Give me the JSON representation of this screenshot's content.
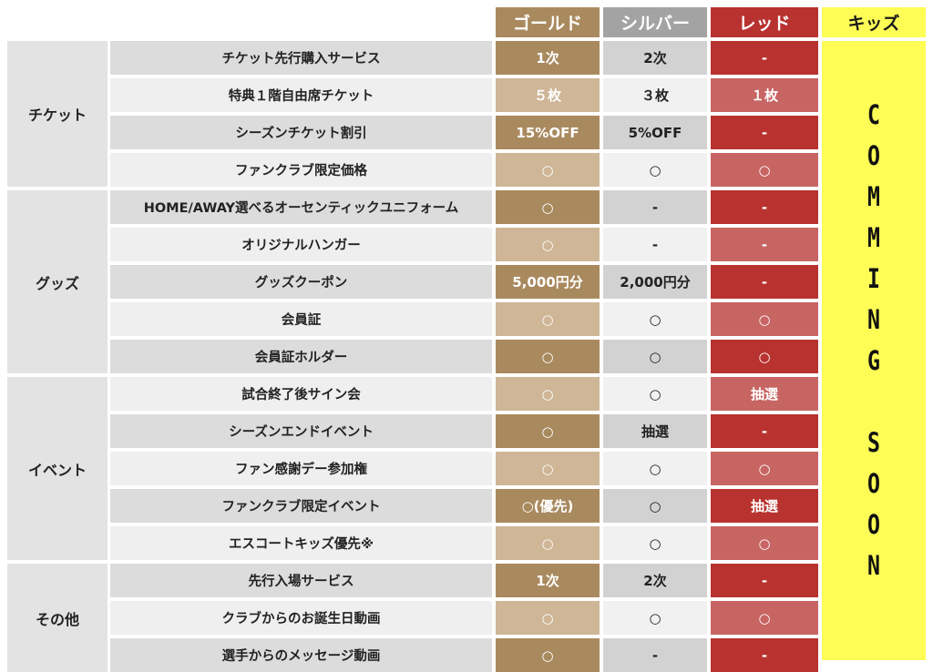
{
  "headers": {
    "gold": "ゴールド",
    "silver": "シルバー",
    "red": "レッド",
    "kids": "キッズ"
  },
  "kids_column": {
    "text": "COMMING SOON",
    "letters": [
      "C",
      "O",
      "M",
      "M",
      "I",
      "N",
      "G",
      "",
      "S",
      "O",
      "O",
      "N"
    ]
  },
  "categories": [
    {
      "name": "チケット",
      "rows": [
        {
          "feature": "チケット先行購入サービス",
          "gold": "1次",
          "silver": "2次",
          "red": "-"
        },
        {
          "feature": "特典１階自由席チケット",
          "gold": "５枚",
          "silver": "３枚",
          "red": "１枚"
        },
        {
          "feature": "シーズンチケット割引",
          "gold": "15%OFF",
          "silver": "5%OFF",
          "red": "-"
        },
        {
          "feature": "ファンクラブ限定価格",
          "gold": "○",
          "silver": "○",
          "red": "○"
        }
      ]
    },
    {
      "name": "グッズ",
      "rows": [
        {
          "feature": "HOME/AWAY選べるオーセンティックユニフォーム",
          "gold": "○",
          "silver": "-",
          "red": "-"
        },
        {
          "feature": "オリジナルハンガー",
          "gold": "○",
          "silver": "-",
          "red": "-"
        },
        {
          "feature": "グッズクーポン",
          "gold": "5,000円分",
          "silver": "2,000円分",
          "red": "-"
        },
        {
          "feature": "会員証",
          "gold": "○",
          "silver": "○",
          "red": "○"
        },
        {
          "feature": "会員証ホルダー",
          "gold": "○",
          "silver": "○",
          "red": "○"
        }
      ]
    },
    {
      "name": "イベント",
      "rows": [
        {
          "feature": "試合終了後サイン会",
          "gold": "○",
          "silver": "○",
          "red": "抽選"
        },
        {
          "feature": "シーズンエンドイベント",
          "gold": "○",
          "silver": "抽選",
          "red": "-"
        },
        {
          "feature": "ファン感謝デー参加権",
          "gold": "○",
          "silver": "○",
          "red": "○"
        },
        {
          "feature": "ファンクラブ限定イベント",
          "gold": "○(優先)",
          "silver": "○",
          "red": "抽選"
        },
        {
          "feature": "エスコートキッズ優先※",
          "gold": "○",
          "silver": "○",
          "red": "○"
        }
      ]
    },
    {
      "name": "その他",
      "rows": [
        {
          "feature": "先行入場サービス",
          "gold": "1次",
          "silver": "2次",
          "red": "-"
        },
        {
          "feature": "クラブからのお誕生日動画",
          "gold": "○",
          "silver": "○",
          "red": "○"
        },
        {
          "feature": "選手からのメッセージ動画",
          "gold": "○",
          "silver": "-",
          "red": "-"
        }
      ]
    }
  ]
}
